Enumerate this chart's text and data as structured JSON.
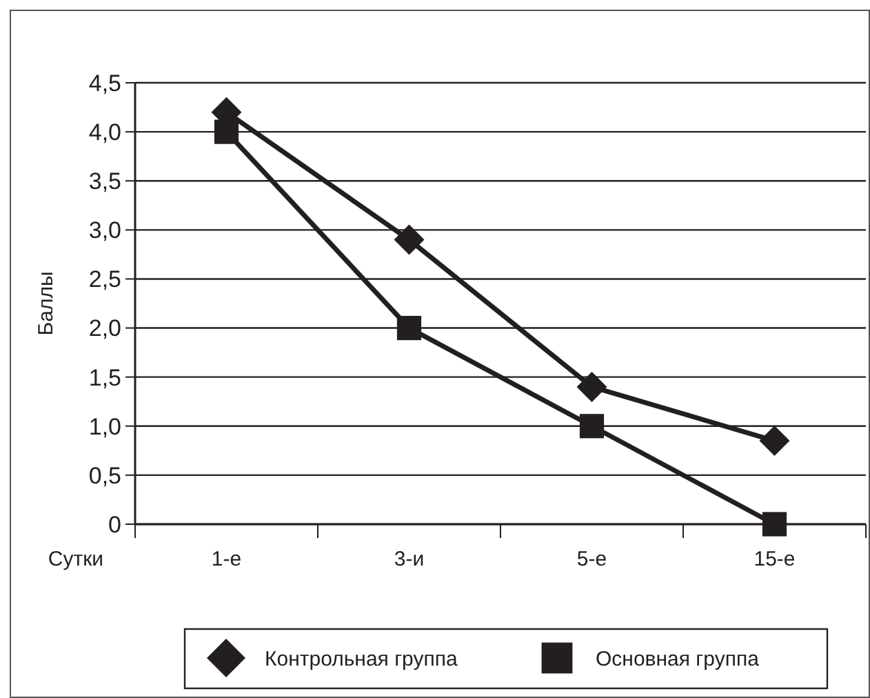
{
  "chart_data": {
    "type": "line",
    "xlabel": "Сутки",
    "ylabel": "Баллы",
    "categories": [
      "1-е",
      "3-и",
      "5-е",
      "15-е"
    ],
    "series": [
      {
        "name": "Контрольная группа",
        "color": "#231f20",
        "marker": "diamond",
        "values": [
          4.2,
          2.9,
          1.4,
          0.85
        ]
      },
      {
        "name": "Основная группа",
        "color": "#231f20",
        "marker": "square",
        "values": [
          4.0,
          2.0,
          1.0,
          0.0
        ]
      }
    ],
    "ylim": [
      0,
      4.5
    ],
    "yticks": [
      {
        "value": 0,
        "label": "0"
      },
      {
        "value": 0.5,
        "label": "0,5"
      },
      {
        "value": 1,
        "label": "1,0"
      },
      {
        "value": 1.5,
        "label": "1,5"
      },
      {
        "value": 2,
        "label": "2,0"
      },
      {
        "value": 2.5,
        "label": "2,5"
      },
      {
        "value": 3,
        "label": "3,0"
      },
      {
        "value": 3.5,
        "label": "3,5"
      },
      {
        "value": 4,
        "label": "4,0"
      },
      {
        "value": 4.5,
        "label": "4,5"
      }
    ],
    "grid": "y",
    "legend": "bottom",
    "line_style": "solid"
  }
}
